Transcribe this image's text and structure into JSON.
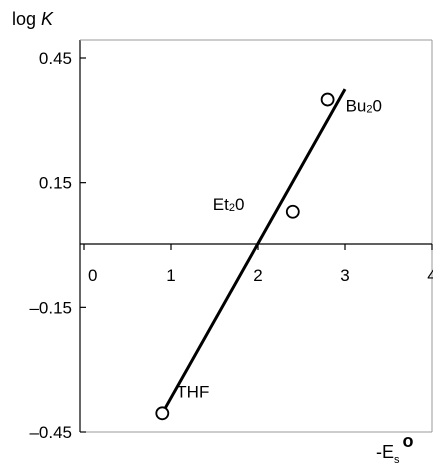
{
  "chart_data": {
    "type": "scatter",
    "title": "",
    "ylabel_prefix": "log ",
    "ylabel_var": "K",
    "xlabel_main": "-E",
    "xlabel_sub": "s",
    "xlabel_sup": "o",
    "xlim": [
      0,
      4
    ],
    "ylim": [
      -0.45,
      0.45
    ],
    "x_ticks": [
      "0",
      "1",
      "2",
      "3",
      "4"
    ],
    "y_ticks": [
      "0.45",
      "0.15",
      "–0.15",
      "–0.45"
    ],
    "y_tick_values": [
      0.45,
      0.15,
      -0.15,
      -0.45
    ],
    "points": [
      {
        "x": 0.9,
        "y": -0.405,
        "label": "THF"
      },
      {
        "x": 2.4,
        "y": 0.08,
        "label": "Et",
        "sub": "2",
        "tail": "0"
      },
      {
        "x": 2.8,
        "y": 0.35,
        "label": "Bu",
        "sub": "2",
        "tail": "0"
      }
    ],
    "fit_line": {
      "x": [
        0.9,
        3.0
      ],
      "y": [
        -0.405,
        0.375
      ]
    },
    "grid": false,
    "line_color": "#000000"
  }
}
